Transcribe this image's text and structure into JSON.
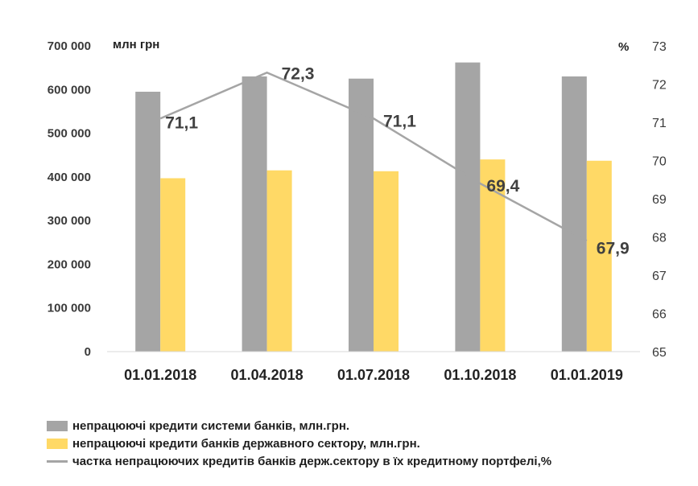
{
  "chart_data": {
    "type": "bar",
    "categories": [
      "01.01.2018",
      "01.04.2018",
      "01.07.2018",
      "01.10.2018",
      "01.01.2019"
    ],
    "series": [
      {
        "name": "непрацюючі кредити системи банків, млн.грн.",
        "kind": "bar",
        "axis": "left",
        "color": "#a5a5a5",
        "values": [
          595000,
          630000,
          625000,
          662000,
          630000
        ]
      },
      {
        "name": "непрацюючі кредити банків державного сектору, млн.грн.",
        "kind": "bar",
        "axis": "left",
        "color": "#ffd966",
        "values": [
          397000,
          415000,
          413000,
          440000,
          437000
        ]
      },
      {
        "name": "частка непрацюючих кредитів банків держ.сектору в їх кредитному портфелі,%",
        "kind": "line",
        "axis": "right",
        "color": "#a5a5a5",
        "values": [
          71.1,
          72.3,
          71.1,
          69.4,
          67.9
        ],
        "labels": [
          "71,1",
          "72,3",
          "71,1",
          "69,4",
          "67,9"
        ]
      }
    ],
    "left_axis": {
      "unit_label": "млн грн",
      "ylim": [
        0,
        700000
      ],
      "ticks": [
        0,
        100000,
        200000,
        300000,
        400000,
        500000,
        600000,
        700000
      ],
      "tick_labels": [
        "0",
        "100 000",
        "200 000",
        "300 000",
        "400 000",
        "500 000",
        "600 000",
        "700 000"
      ]
    },
    "right_axis": {
      "unit_label": "%",
      "ylim": [
        65,
        73
      ],
      "ticks": [
        65,
        66,
        67,
        68,
        69,
        70,
        71,
        72,
        73
      ],
      "tick_labels": [
        "65",
        "66",
        "67",
        "68",
        "69",
        "70",
        "71",
        "72",
        "73"
      ]
    },
    "grid": false,
    "legend_position": "bottom-left"
  }
}
